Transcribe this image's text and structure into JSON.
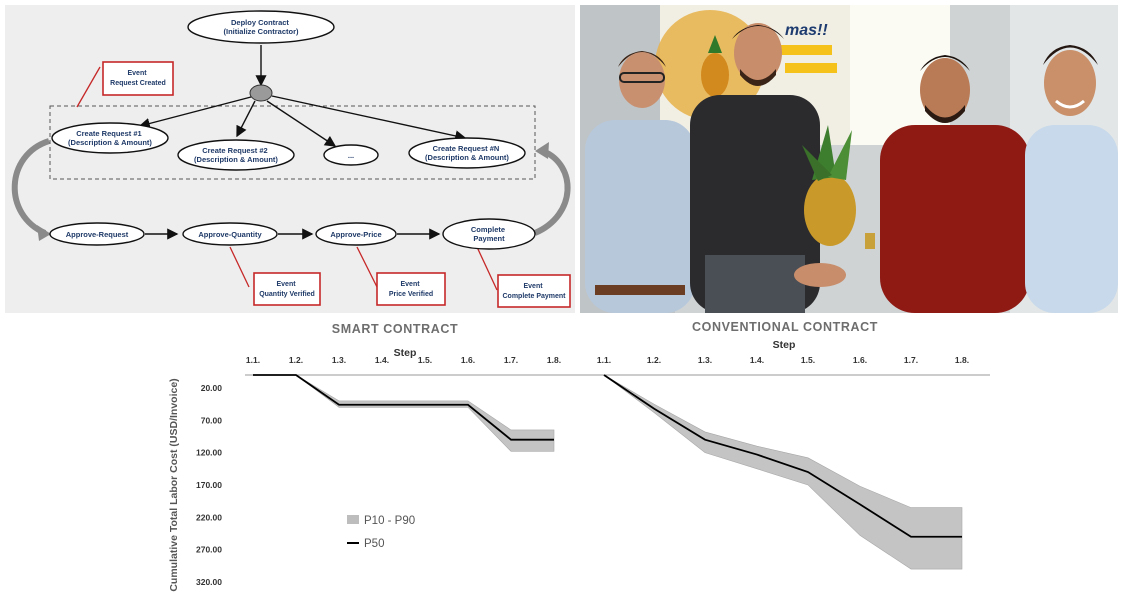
{
  "diagram": {
    "nodes": {
      "deploy": [
        "Deploy Contract",
        "(Initialize Contractor)"
      ],
      "req1": [
        "Create Request #1",
        "(Description & Amount)"
      ],
      "req2": [
        "Create Request #2",
        "(Description & Amount)"
      ],
      "reqdots": [
        "..."
      ],
      "reqn": [
        "Create Request #N",
        "(Description & Amount)"
      ],
      "approve_request": [
        "Approve-Request"
      ],
      "approve_quantity": [
        "Approve-Quantity"
      ],
      "approve_price": [
        "Approve-Price"
      ],
      "complete_payment": [
        "Complete",
        "Payment"
      ]
    },
    "events": {
      "request_created": [
        "Event",
        "Request Created"
      ],
      "quantity_verified": [
        "Event",
        "Quantity Verified"
      ],
      "price_verified": [
        "Event",
        "Price Verified"
      ],
      "complete_payment": [
        "Event",
        "Complete Payment"
      ]
    }
  },
  "photo": {
    "poster_text": "mas!!"
  },
  "chart_data": [
    {
      "type": "area",
      "title": "SMART CONTRACT",
      "xlabel": "Step",
      "ylabel": "Cumulative Total Labor Cost (USD/Invoice)",
      "categories": [
        "1.1.",
        "1.2.",
        "1.3.",
        "1.4.",
        "1.5.",
        "1.6.",
        "1.7.",
        "1.8."
      ],
      "y_ticks": [
        "20.00",
        "70.00",
        "120.00",
        "170.00",
        "220.00",
        "270.00",
        "320.00"
      ],
      "ylim": [
        0,
        330
      ],
      "y_inverted": true,
      "series": [
        {
          "name": "P10 - P90",
          "kind": "band",
          "low": [
            0,
            0,
            40,
            40,
            40,
            40,
            85,
            85
          ],
          "high": [
            0,
            0,
            50,
            50,
            50,
            50,
            118,
            118
          ]
        },
        {
          "name": "P50",
          "kind": "line",
          "values": [
            0,
            0,
            46,
            46,
            46,
            46,
            100,
            100
          ]
        }
      ],
      "legend": "bottom-left",
      "grid": false
    },
    {
      "type": "area",
      "title": "CONVENTIONAL CONTRACT",
      "xlabel": "Step",
      "categories": [
        "1.1.",
        "1.2.",
        "1.3.",
        "1.4.",
        "1.5.",
        "1.6.",
        "1.7.",
        "1.8."
      ],
      "ylim": [
        0,
        330
      ],
      "y_inverted": true,
      "series": [
        {
          "name": "P10 - P90",
          "kind": "band",
          "low": [
            0,
            45,
            88,
            110,
            128,
            172,
            205,
            205
          ],
          "high": [
            0,
            58,
            120,
            145,
            170,
            248,
            300,
            300
          ]
        },
        {
          "name": "P50",
          "kind": "line",
          "values": [
            0,
            52,
            100,
            123,
            150,
            200,
            250,
            250
          ]
        }
      ],
      "grid": false
    }
  ]
}
